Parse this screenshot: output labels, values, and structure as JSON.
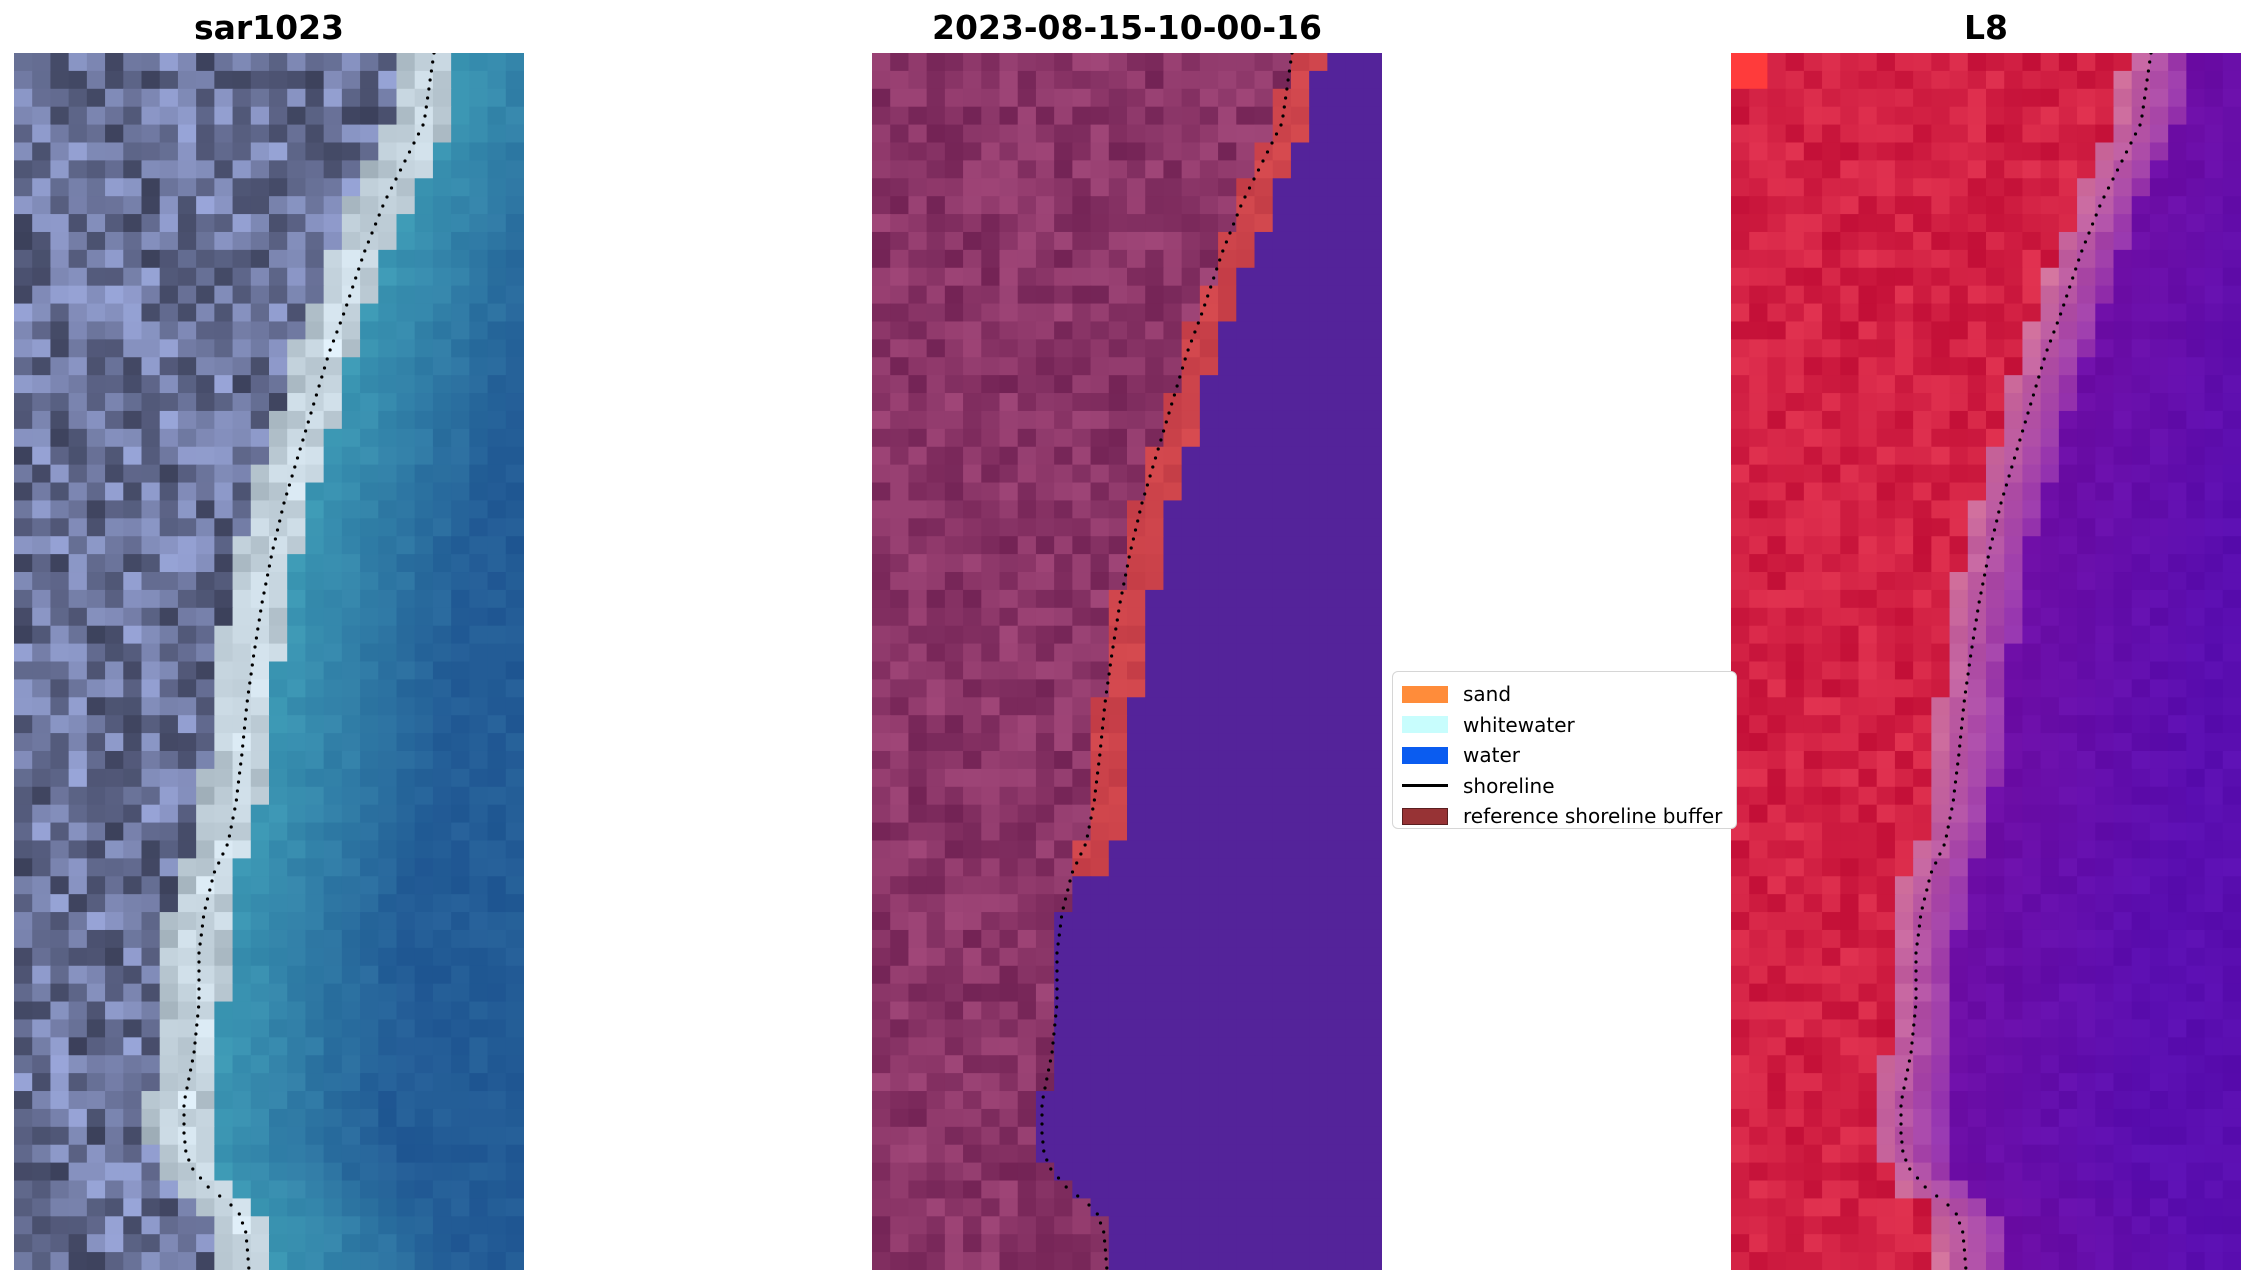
{
  "panels": [
    {
      "id": "rgb",
      "title": "sar1023",
      "image_kind": "true-colour satellite image of coast"
    },
    {
      "id": "classified",
      "title": "2023-08-15-10-00-16",
      "image_kind": "classified image overlay"
    },
    {
      "id": "index",
      "title": "L8",
      "image_kind": "water index image"
    }
  ],
  "legend": {
    "items": [
      {
        "label": "sand",
        "color": "#ff8c3a",
        "kind": "patch"
      },
      {
        "label": "whitewater",
        "color": "#c8fdfd",
        "kind": "patch"
      },
      {
        "label": "water",
        "color": "#0a5cf0",
        "kind": "patch"
      },
      {
        "label": "shoreline",
        "color": "#000000",
        "kind": "line"
      },
      {
        "label": "reference shoreline buffer",
        "color": "#973335",
        "kind": "patch"
      }
    ]
  },
  "colors": {
    "shoreline_dots": "#000000"
  }
}
